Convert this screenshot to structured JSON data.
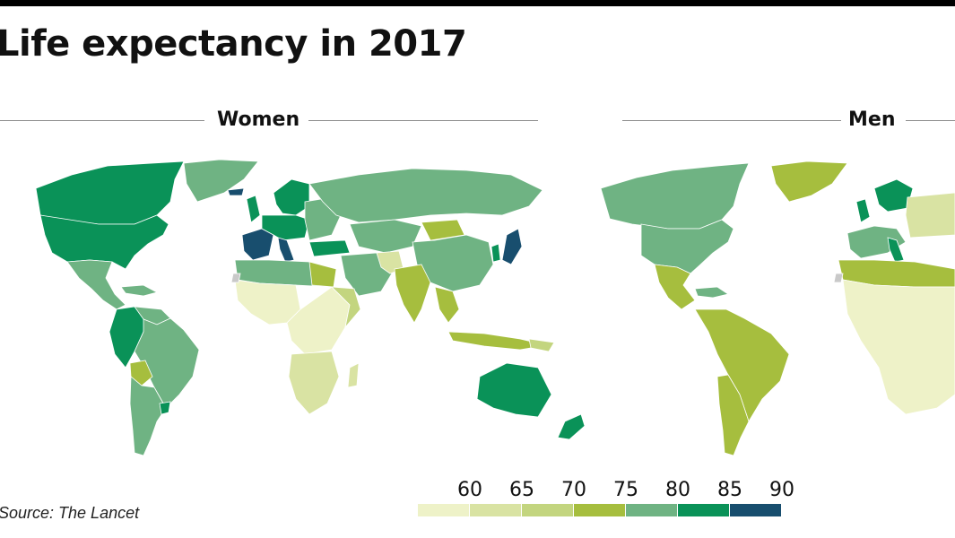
{
  "title": "Life expectancy in 2017",
  "panels": {
    "left": "Women",
    "right": "Men"
  },
  "source": "Source: The Lancet",
  "legend": {
    "ticks": [
      "60",
      "65",
      "70",
      "75",
      "80",
      "85",
      "90"
    ],
    "colors": [
      "#eef2c8",
      "#d9e3a3",
      "#c3d57f",
      "#a6be3e",
      "#6fb383",
      "#0a9258",
      "#184e6e"
    ]
  },
  "colors": {
    "ocean": "#ffffff",
    "land_unknown": "#c9c9c9",
    "border": "#ffffff"
  }
}
